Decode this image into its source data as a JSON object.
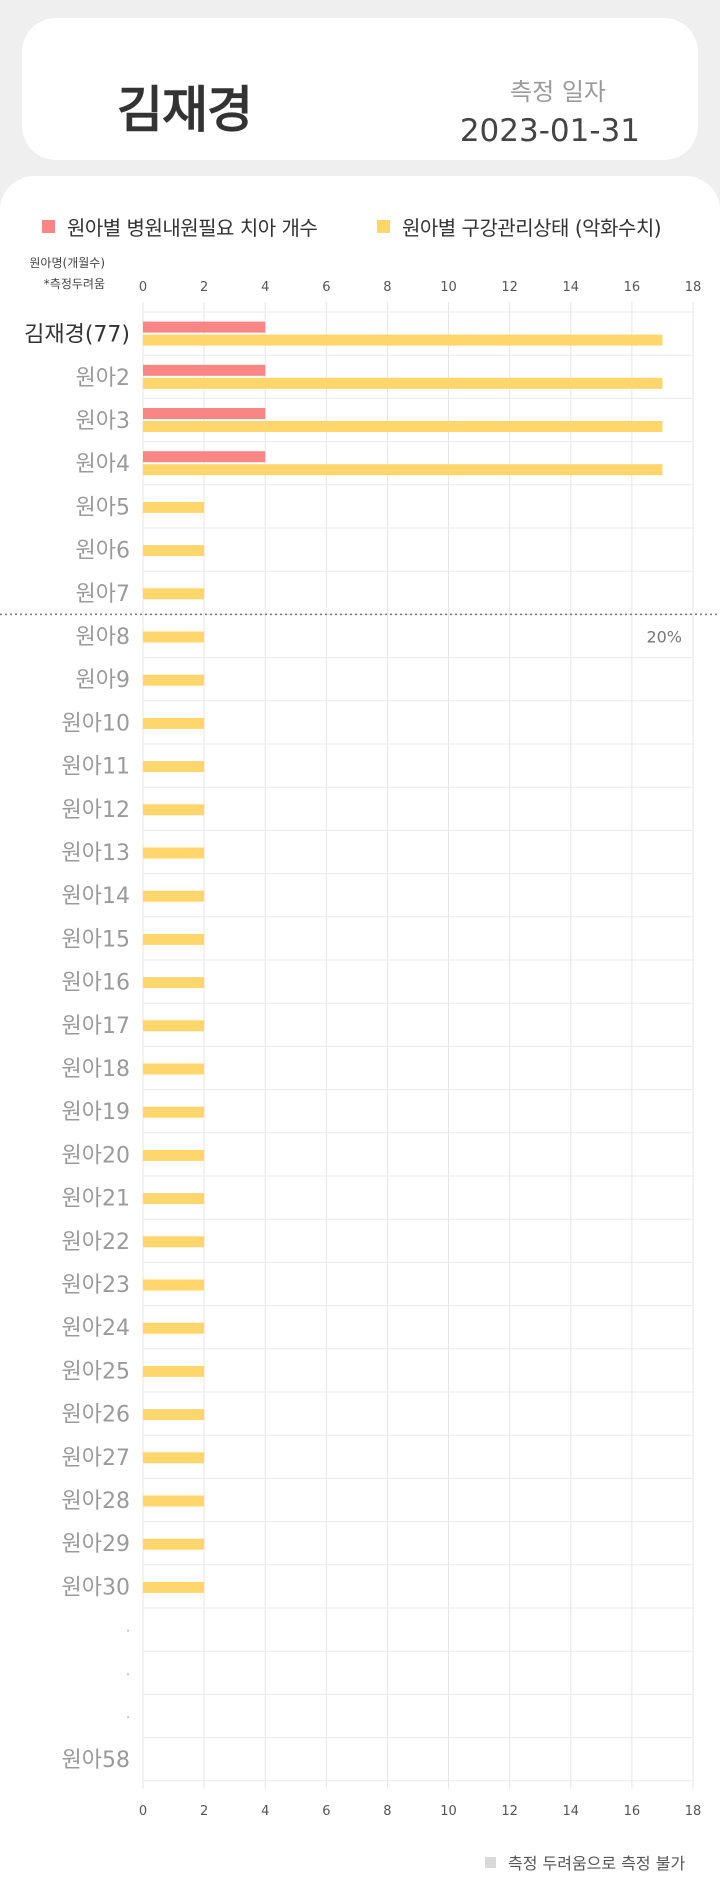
{
  "header": {
    "name": "김재경",
    "date_label": "측정 일자",
    "date_value": "2023-01-31"
  },
  "chart_data": {
    "type": "bar",
    "orientation": "horizontal",
    "row_header_line1": "원아명(개월수)",
    "row_header_line2": "*측정두려움",
    "categories": [
      "김재경(77)",
      "원아2",
      "원아3",
      "원아4",
      "원아5",
      "원아6",
      "원아7",
      "원아8",
      "원아9",
      "원아10",
      "원아11",
      "원아12",
      "원아13",
      "원아14",
      "원아15",
      "원아16",
      "원아17",
      "원아18",
      "원아19",
      "원아20",
      "원아21",
      "원아22",
      "원아23",
      "원아24",
      "원아25",
      "원아26",
      "원아27",
      "원아28",
      "원아29",
      "원아30",
      ".",
      ".",
      ".",
      "원아58"
    ],
    "highlight_category": "김재경(77)",
    "series": [
      {
        "name": "원아별 병원내원필요 치아 개수",
        "color": "#f98585",
        "values": [
          4,
          4,
          4,
          4,
          null,
          null,
          null,
          null,
          null,
          null,
          null,
          null,
          null,
          null,
          null,
          null,
          null,
          null,
          null,
          null,
          null,
          null,
          null,
          null,
          null,
          null,
          null,
          null,
          null,
          null,
          null,
          null,
          null,
          null
        ]
      },
      {
        "name": "원아별 구강관리상태 (악화수치)",
        "color": "#ffd66b",
        "values": [
          17,
          17,
          17,
          17,
          2,
          2,
          2,
          2,
          2,
          2,
          2,
          2,
          2,
          2,
          2,
          2,
          2,
          2,
          2,
          2,
          2,
          2,
          2,
          2,
          2,
          2,
          2,
          2,
          2,
          2,
          null,
          null,
          null,
          null
        ]
      }
    ],
    "xlim": [
      0,
      18
    ],
    "xticks": [
      0,
      2,
      4,
      6,
      8,
      10,
      12,
      14,
      16,
      18
    ],
    "grid": true,
    "legend_position": "top",
    "annotation": {
      "text": "20%",
      "after_category": "원아7"
    },
    "footnote": "측정 두려움으로 측정 불가"
  }
}
